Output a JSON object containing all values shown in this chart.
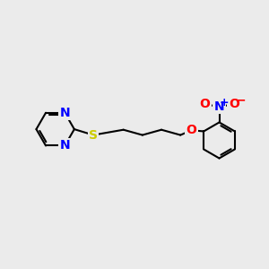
{
  "background_color": "#ebebeb",
  "bond_color": "#000000",
  "N_color": "#0000ff",
  "S_color": "#cccc00",
  "O_color": "#ff0000",
  "line_width": 1.5,
  "font_size": 10,
  "fig_width": 3.0,
  "fig_height": 3.0,
  "dpi": 100,
  "xlim": [
    0,
    10
  ],
  "ylim": [
    1,
    9
  ]
}
